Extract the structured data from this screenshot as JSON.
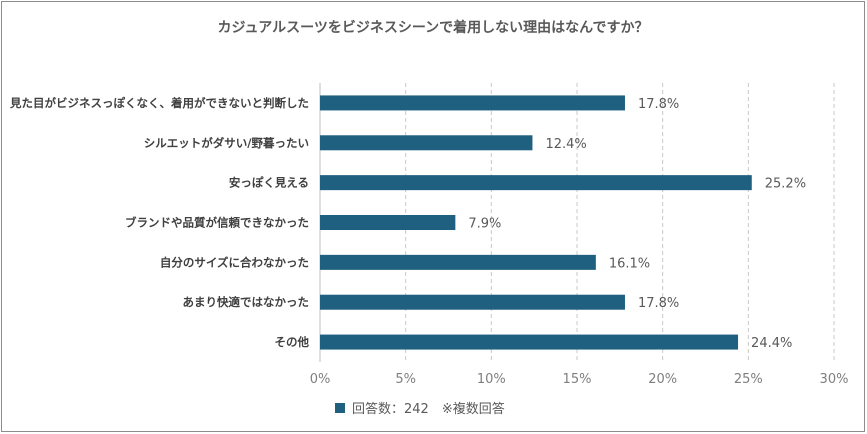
{
  "chart_data": {
    "type": "bar",
    "orientation": "horizontal",
    "title": "カジュアルスーツをビジネスシーンで着用しない理由はなんですか？",
    "categories": [
      "見た目がビジネスっぽくなく、着用ができないと判断した",
      "シルエットがダサい/野暮ったい",
      "安っぽく見える",
      "ブランドや品質が信頼できなかった",
      "自分のサイズに合わなかった",
      "あまり快適ではなかった",
      "その他"
    ],
    "values": [
      17.8,
      12.4,
      25.2,
      7.9,
      16.1,
      17.8,
      24.4
    ],
    "value_labels": [
      "17.8%",
      "12.4%",
      "25.2%",
      "7.9%",
      "16.1%",
      "17.8%",
      "24.4%"
    ],
    "xlim": [
      0,
      30
    ],
    "x_ticks": [
      "0%",
      "5%",
      "10%",
      "15%",
      "20%",
      "25%",
      "30%"
    ],
    "gridlines": "vertical-dashed",
    "legend": {
      "position": "bottom",
      "label": "回答数：242　※複数回答"
    },
    "bar_color": "#1f5f7f"
  }
}
